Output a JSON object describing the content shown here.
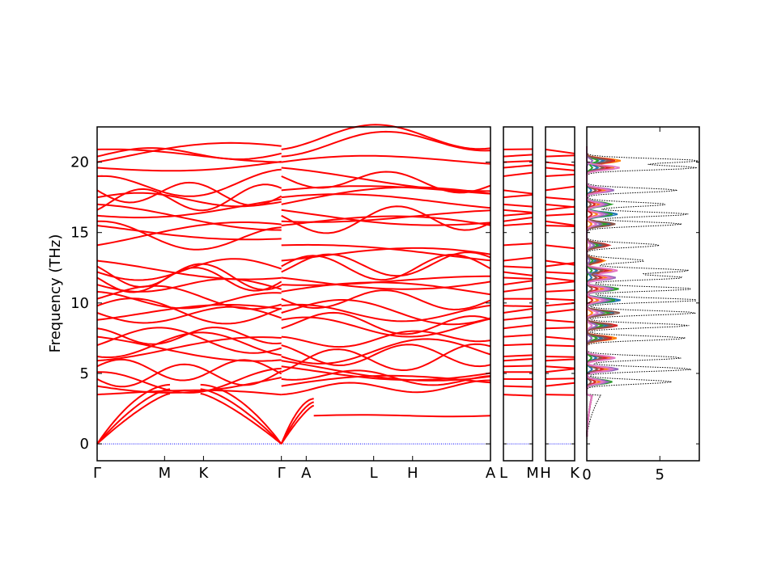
{
  "chart_data": {
    "type": "line",
    "title": "",
    "ylabel": "Frequency (THz)",
    "ylim": [
      -1.2,
      22.5
    ],
    "yticks": [
      0,
      5,
      10,
      15,
      20
    ],
    "panels": [
      {
        "name": "band-main",
        "segments": [
          {
            "labels": [
              "Γ",
              "M",
              "K",
              "Γ"
            ],
            "x": [
              0.0,
              1.0,
              1.577,
              2.732
            ]
          },
          {
            "labels": [
              "Γ",
              "A",
              "L",
              "H",
              "A"
            ],
            "x": [
              2.732,
              3.1,
              4.1,
              4.677,
              5.832
            ]
          }
        ],
        "band_levels_at_gamma": [
          0,
          0,
          0,
          3.5,
          4.1,
          4.6,
          5.1,
          5.5,
          5.9,
          6.2,
          7.0,
          7.6,
          8.2,
          8.8,
          9.3,
          9.8,
          10.3,
          10.8,
          11.3,
          11.8,
          12.2,
          12.6,
          13.0,
          14.1,
          15.5,
          15.8,
          16.2,
          16.6,
          17.0,
          17.5,
          18.0,
          19.0,
          19.6,
          20.0,
          20.4,
          20.9
        ],
        "acoustic_branch_at_A": 2.0,
        "color": "#ff0000"
      },
      {
        "name": "band-L-M",
        "segments": [
          {
            "labels": [
              "L",
              "M"
            ]
          }
        ],
        "color": "#ff0000"
      },
      {
        "name": "band-H-K",
        "segments": [
          {
            "labels": [
              "H",
              "K"
            ]
          }
        ],
        "color": "#ff0000"
      },
      {
        "name": "dos",
        "xticks": [
          0,
          5
        ],
        "xlim": [
          0,
          7.7
        ],
        "total_dos_color": "#000000",
        "partial_dos_colors": [
          "#1f77b4",
          "#ff7f0e",
          "#2ca02c",
          "#d62728",
          "#9467bd",
          "#8c564b",
          "#e377c2"
        ],
        "total_dos_peaks": [
          {
            "f": 4.4,
            "v": 5.8
          },
          {
            "f": 5.3,
            "v": 7.2
          },
          {
            "f": 6.1,
            "v": 6.5
          },
          {
            "f": 7.5,
            "v": 6.8
          },
          {
            "f": 8.4,
            "v": 7.0
          },
          {
            "f": 9.3,
            "v": 7.5
          },
          {
            "f": 10.2,
            "v": 7.7
          },
          {
            "f": 11.0,
            "v": 7.3
          },
          {
            "f": 11.8,
            "v": 6.6
          },
          {
            "f": 12.3,
            "v": 7.0
          },
          {
            "f": 13.0,
            "v": 4.0
          },
          {
            "f": 14.1,
            "v": 5.0
          },
          {
            "f": 15.6,
            "v": 6.5
          },
          {
            "f": 16.3,
            "v": 7.0
          },
          {
            "f": 17.0,
            "v": 5.5
          },
          {
            "f": 18.0,
            "v": 6.2
          },
          {
            "f": 19.6,
            "v": 7.5
          },
          {
            "f": 20.1,
            "v": 7.7
          }
        ]
      }
    ],
    "reference_line": {
      "y": 0,
      "color": "#0000ff",
      "style": "dotted"
    }
  }
}
